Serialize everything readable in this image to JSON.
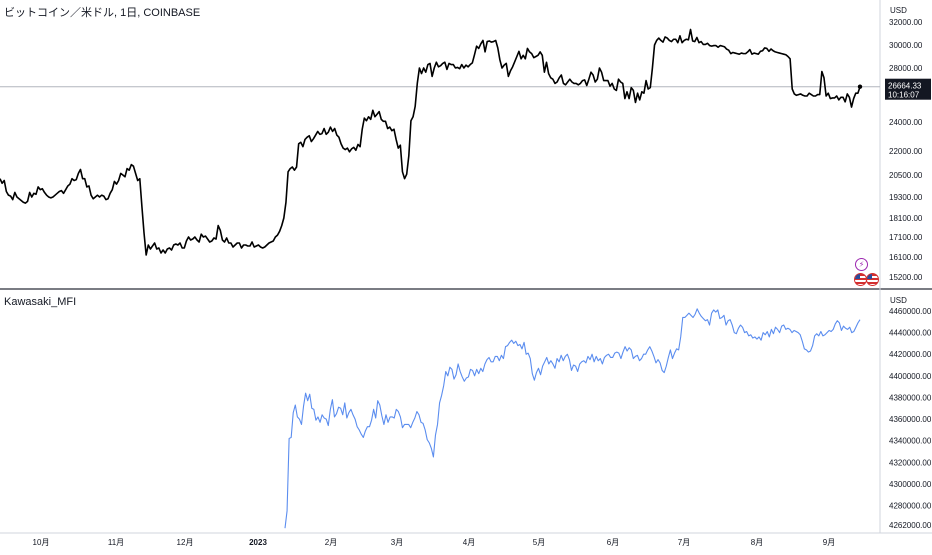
{
  "chart_data": [
    {
      "type": "line",
      "title": "ビットコイン／米ドル, 1日, COINBASE",
      "currency": "USD",
      "color": "#000000",
      "y_ticks": [
        32000,
        30000,
        28000,
        26000,
        24000,
        22000,
        20500,
        19300,
        18100,
        17100,
        16100,
        15200
      ],
      "y_tick_labels": [
        "32000.00",
        "30000.00",
        "28000.00",
        "26000.00",
        "24000.00",
        "22000.00",
        "20500.00",
        "19300.00",
        "18100.00",
        "17100.00",
        "16100.00",
        "15200.00"
      ],
      "last_price": "26664.33",
      "countdown": "10:16:07",
      "price_line_value": 26664.33,
      "series": [
        {
          "values": [
            20300,
            20050,
            20200,
            19600,
            19400,
            19350,
            19150,
            19550,
            19300,
            19200,
            19100,
            19000,
            18950,
            19050,
            19550,
            19300,
            19500,
            19450,
            19850,
            19700,
            19750,
            19550,
            19400,
            19300,
            19250,
            19300,
            19400,
            19500,
            19600,
            19650,
            19500,
            19700,
            19900,
            20000,
            20300,
            20200,
            20250,
            20600,
            20850,
            20300,
            20300,
            19850,
            19900,
            19400,
            19200,
            19300,
            19400,
            19300,
            19400,
            19350,
            19150,
            19200,
            19500,
            19700,
            20150,
            20000,
            20200,
            20600,
            20500,
            20400,
            20900,
            20800,
            21150,
            21050,
            20600,
            20200,
            20300,
            18750,
            17300,
            16200,
            16700,
            16500,
            16650,
            16800,
            16500,
            16550,
            16300,
            16450,
            16300,
            16500,
            16550,
            16450,
            16700,
            16750,
            16700,
            16800,
            16550,
            16550,
            16900,
            17100,
            16950,
            17000,
            17100,
            16950,
            16850,
            17250,
            17100,
            17150,
            17000,
            16850,
            16900,
            17050,
            17000,
            17700,
            17450,
            16950,
            16850,
            17050,
            16800,
            16800,
            16600,
            16700,
            16800,
            16800,
            16550,
            16700,
            16700,
            16650,
            16650,
            16850,
            16600,
            16650,
            16700,
            16600,
            16550,
            16600,
            16700,
            16800,
            16850,
            16900,
            17100,
            17200,
            17400,
            17700,
            18100,
            19000,
            20700,
            20900,
            21000,
            20800,
            21000,
            22500,
            22600,
            22300,
            22800,
            22950,
            23050,
            22650,
            22850,
            23100,
            23350,
            23150,
            23200,
            23550,
            23150,
            23300,
            23650,
            23350,
            23550,
            23100,
            22950,
            22500,
            22200,
            22100,
            22200,
            21950,
            22150,
            22250,
            22050,
            22450,
            22300,
            23500,
            24300,
            24100,
            24400,
            24200,
            24900,
            24400,
            24600,
            24800,
            24200,
            24050,
            24050,
            23550,
            23650,
            23400,
            23500,
            22800,
            22200,
            22400,
            20700,
            20300,
            20550,
            21700,
            24100,
            24400,
            25200,
            26900,
            28000,
            27600,
            28000,
            27700,
            28300,
            28400,
            27400,
            28000,
            28500,
            28100,
            28200,
            28400,
            28500,
            27900,
            28400,
            28300,
            28300,
            28000,
            28050,
            27950,
            28300,
            28000,
            28250,
            28100,
            28300,
            28450,
            29150,
            29900,
            29700,
            30100,
            30400,
            29400,
            30300,
            30350,
            30250,
            30300,
            30400,
            29750,
            28700,
            28000,
            28250,
            28400,
            27400,
            27800,
            28100,
            28550,
            29000,
            29450,
            28800,
            29100,
            28800,
            29700,
            29400,
            29250,
            28900,
            29000,
            29100,
            29400,
            29100,
            27700,
            28500,
            27600,
            27300,
            27200,
            26900,
            27000,
            27300,
            27500,
            26900,
            26800,
            27000,
            27200,
            27000,
            26900,
            26900,
            26800,
            26900,
            27100,
            27150,
            26750,
            27200,
            27700,
            27500,
            27000,
            27200,
            28000,
            27700,
            27100,
            27100,
            27100,
            26700,
            26900,
            26500,
            26400,
            27200,
            27000,
            26900,
            25800,
            26300,
            25800,
            26600,
            26400,
            25500,
            26200,
            25700,
            26300,
            26200,
            27100,
            26500,
            26600,
            28000,
            30000,
            30400,
            30600,
            30400,
            30250,
            30700,
            30600,
            30400,
            30300,
            30500,
            30500,
            30200,
            30800,
            30200,
            30400,
            30500,
            30450,
            31350,
            30350,
            30300,
            30650,
            30200,
            30300,
            30050,
            30050,
            30150,
            29950,
            29900,
            29950,
            29950,
            29800,
            29950,
            29900,
            29850,
            29650,
            29550,
            29250,
            29350,
            29300,
            29250,
            29200,
            29300,
            29250,
            29250,
            29400,
            29600,
            29200,
            29300,
            29250,
            29200,
            29450,
            29500,
            29750,
            29700,
            29450,
            29650,
            29500,
            29400,
            29350,
            29300,
            29250,
            29200,
            29150,
            29000,
            28800,
            26500,
            26150,
            26050,
            26100,
            26150,
            26050,
            26000,
            26000,
            26200,
            26100,
            26000,
            26000,
            26100,
            26100,
            27750,
            27300,
            26000,
            26200,
            25800,
            25850,
            25850,
            26000,
            25700,
            25900,
            25900,
            25550,
            26150,
            25900,
            25150,
            25800,
            26200,
            26200,
            26664.33
          ]
        }
      ]
    },
    {
      "type": "line",
      "title": "Kawasaki_MFI",
      "currency": "USD",
      "color": "#5b8def",
      "y_ticks": [
        4460000,
        4440000,
        4420000,
        4400000,
        4380000,
        4360000,
        4340000,
        4320000,
        4300000,
        4280000,
        4262000
      ],
      "y_tick_labels": [
        "4460000.00",
        "4440000.00",
        "4420000.00",
        "4400000.00",
        "4380000.00",
        "4360000.00",
        "4340000.00",
        "4320000.00",
        "4300000.00",
        "4280000.00",
        "4262000.00"
      ],
      "series": [
        {
          "values": [
            4259000,
            4275000,
            4342000,
            4343000,
            4366000,
            4373000,
            4362000,
            4360000,
            4355000,
            4372000,
            4384000,
            4377000,
            4383000,
            4370000,
            4369000,
            4359000,
            4362000,
            4357000,
            4364000,
            4361000,
            4360000,
            4354000,
            4369000,
            4378000,
            4362000,
            4365000,
            4371000,
            4370000,
            4364000,
            4375000,
            4361000,
            4366000,
            4369000,
            4364000,
            4360000,
            4353000,
            4350000,
            4346000,
            4343000,
            4349000,
            4353000,
            4353000,
            4359000,
            4369000,
            4361000,
            4377000,
            4373000,
            4363000,
            4355000,
            4364000,
            4357000,
            4362000,
            4362000,
            4361000,
            4369000,
            4367000,
            4362000,
            4352000,
            4355000,
            4355000,
            4355000,
            4352000,
            4357000,
            4361000,
            4367000,
            4364000,
            4357000,
            4356000,
            4350000,
            4341000,
            4338000,
            4333000,
            4325000,
            4345000,
            4355000,
            4375000,
            4382000,
            4391000,
            4404000,
            4400000,
            4408000,
            4406000,
            4397000,
            4401000,
            4411000,
            4404000,
            4399000,
            4395000,
            4398000,
            4399000,
            4406000,
            4405000,
            4400000,
            4406000,
            4402000,
            4407000,
            4404000,
            4411000,
            4415000,
            4417000,
            4413000,
            4413000,
            4418000,
            4418000,
            4414000,
            4419000,
            4416000,
            4427000,
            4428000,
            4431000,
            4433000,
            4430000,
            4432000,
            4428000,
            4429000,
            4425000,
            4431000,
            4420000,
            4421000,
            4416000,
            4402000,
            4396000,
            4403000,
            4407000,
            4401000,
            4409000,
            4413000,
            4417000,
            4411000,
            4414000,
            4411000,
            4407000,
            4416000,
            4413000,
            4419000,
            4414000,
            4418000,
            4420000,
            4415000,
            4405000,
            4410000,
            4409000,
            4404000,
            4411000,
            4413000,
            4414000,
            4412000,
            4418000,
            4415000,
            4420000,
            4413000,
            4418000,
            4414000,
            4416000,
            4411000,
            4417000,
            4419000,
            4420000,
            4417000,
            4417000,
            4421000,
            4422000,
            4421000,
            4416000,
            4422000,
            4427000,
            4423000,
            4426000,
            4424000,
            4416000,
            4418000,
            4419000,
            4414000,
            4416000,
            4420000,
            4420000,
            4424000,
            4427000,
            4423000,
            4418000,
            4412000,
            4415000,
            4412000,
            4405000,
            4403000,
            4409000,
            4417000,
            4424000,
            4416000,
            4421000,
            4425000,
            4424000,
            4436000,
            4454000,
            4454000,
            4456000,
            4458000,
            4456000,
            4454000,
            4457000,
            4462000,
            4458000,
            4455000,
            4453000,
            4451000,
            4452000,
            4447000,
            4458000,
            4461000,
            4459000,
            4461000,
            4453000,
            4454000,
            4456000,
            4447000,
            4451000,
            4452000,
            4447000,
            4440000,
            4439000,
            4444000,
            4447000,
            4445000,
            4440000,
            4441000,
            4437000,
            4438000,
            4435000,
            4436000,
            4434000,
            4436000,
            4433000,
            4440000,
            4438000,
            4441000,
            4436000,
            4443000,
            4439000,
            4445000,
            4443000,
            4440000,
            4446000,
            4447000,
            4443000,
            4444000,
            4443000,
            4440000,
            4442000,
            4441000,
            4440000,
            4438000,
            4432000,
            4425000,
            4424000,
            4422000,
            4423000,
            4428000,
            4437000,
            4439000,
            4437000,
            4441000,
            4437000,
            4438000,
            4440000,
            4442000,
            4441000,
            4443000,
            4448000,
            4451000,
            4449000,
            4442000,
            4446000,
            4444000,
            4443000,
            4445000,
            4440000,
            4441000,
            4445000,
            4449000,
            4452000
          ]
        }
      ]
    }
  ],
  "x_axis": {
    "labels": [
      "10月",
      "11月",
      "12月",
      "2023",
      "2月",
      "3月",
      "4月",
      "5月",
      "6月",
      "7月",
      "8月",
      "9月"
    ],
    "bold": [
      false,
      false,
      false,
      true,
      false,
      false,
      false,
      false,
      false,
      false,
      false,
      false
    ]
  },
  "badges": [
    {
      "name": "event-icon",
      "glyph": "⚡"
    },
    {
      "name": "us-flag-icon"
    },
    {
      "name": "us-flag-icon"
    }
  ]
}
